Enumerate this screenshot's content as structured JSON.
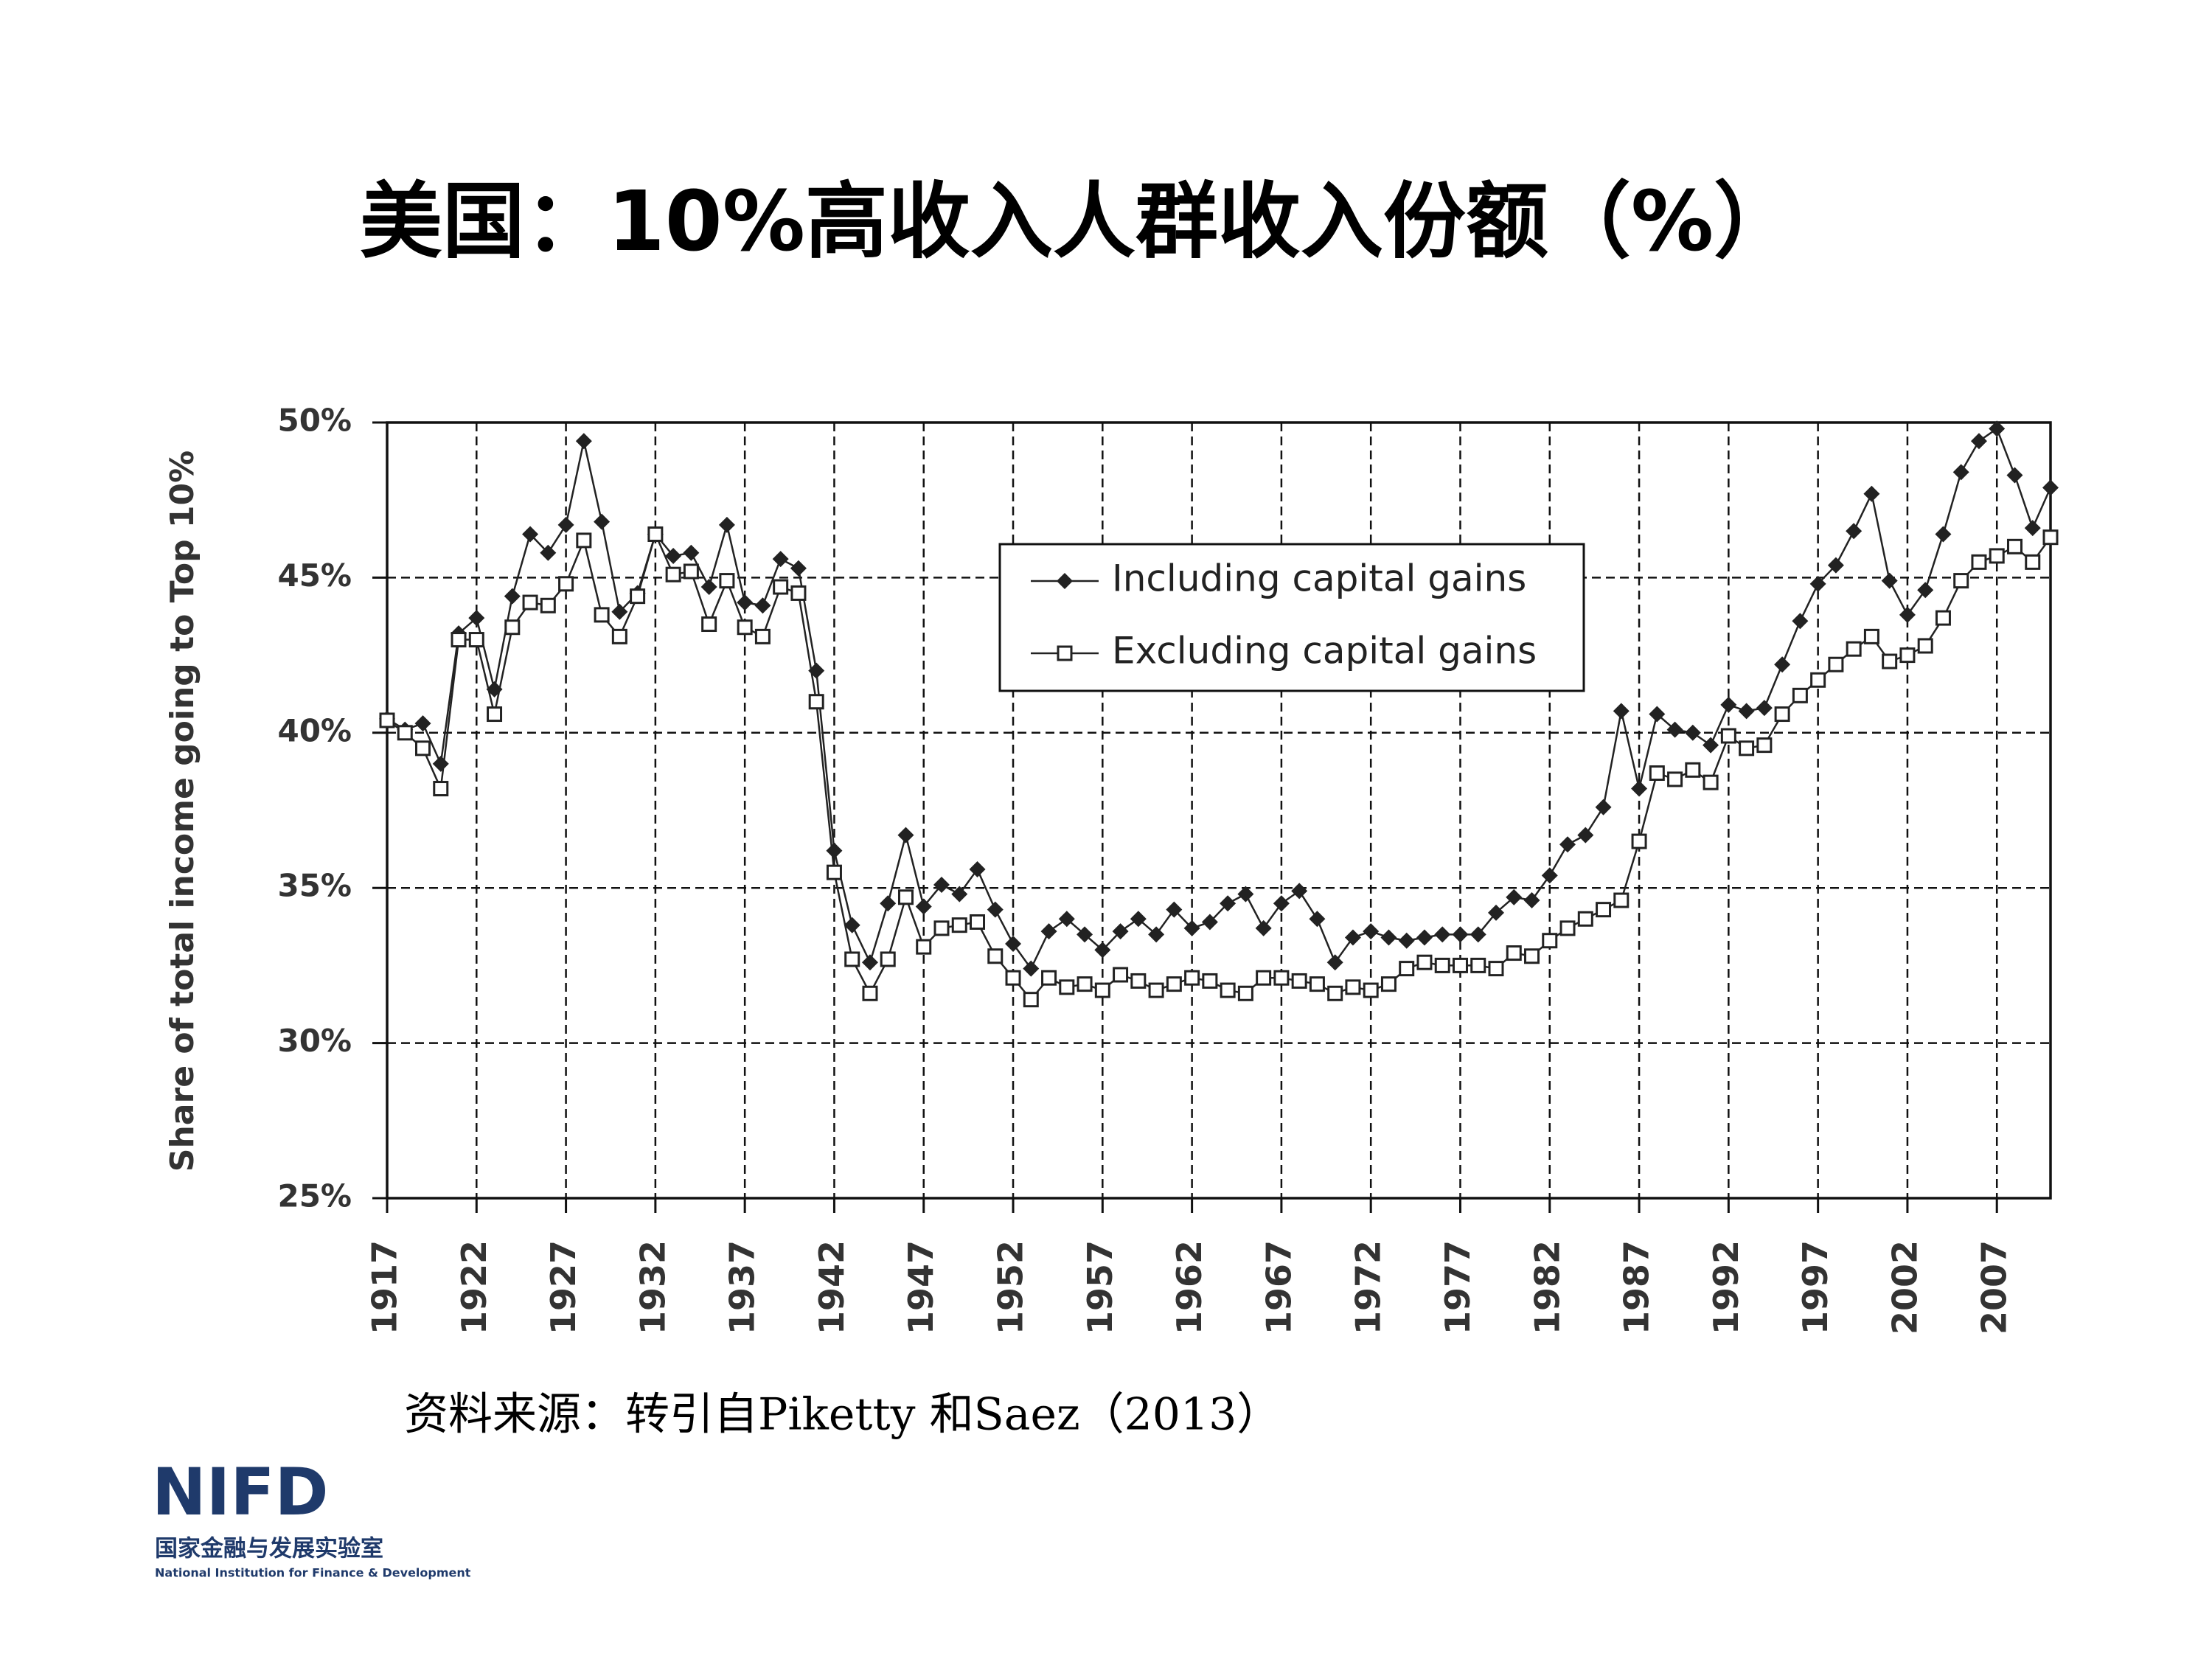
{
  "title": "美国：10%高收入人群收入份额（%）",
  "source": "资料来源：转引自Piketty 和Saez（2013）",
  "logo": {
    "name": "NIFD",
    "cn": "国家金融与发展实验室",
    "en": "National Institution for Finance & Development"
  },
  "chart_data": {
    "type": "line",
    "y_label": "Share of total income going to Top 10%",
    "x": [
      1917,
      1918,
      1919,
      1920,
      1921,
      1922,
      1923,
      1924,
      1925,
      1926,
      1927,
      1928,
      1929,
      1930,
      1931,
      1932,
      1933,
      1934,
      1935,
      1936,
      1937,
      1938,
      1939,
      1940,
      1941,
      1942,
      1943,
      1944,
      1945,
      1946,
      1947,
      1948,
      1949,
      1950,
      1951,
      1952,
      1953,
      1954,
      1955,
      1956,
      1957,
      1958,
      1959,
      1960,
      1961,
      1962,
      1963,
      1964,
      1965,
      1966,
      1967,
      1968,
      1969,
      1970,
      1971,
      1972,
      1973,
      1974,
      1975,
      1976,
      1977,
      1978,
      1979,
      1980,
      1981,
      1982,
      1983,
      1984,
      1985,
      1986,
      1987,
      1988,
      1989,
      1990,
      1991,
      1992,
      1993,
      1994,
      1995,
      1996,
      1997,
      1998,
      1999,
      2000,
      2001,
      2002,
      2003,
      2004,
      2005,
      2006,
      2007,
      2008,
      2009,
      2010
    ],
    "series": [
      {
        "name": "Including capital gains",
        "color": "#222222",
        "marker": "diamond",
        "values": [
          40.45,
          40.1,
          40.3,
          39.0,
          43.2,
          43.7,
          41.4,
          44.4,
          46.4,
          45.8,
          46.7,
          49.4,
          46.8,
          43.9,
          44.5,
          46.4,
          45.7,
          45.8,
          44.7,
          46.7,
          44.2,
          44.1,
          45.6,
          45.3,
          42.0,
          36.2,
          33.8,
          32.6,
          34.5,
          36.7,
          34.4,
          35.1,
          34.8,
          35.6,
          34.3,
          33.2,
          32.4,
          33.6,
          34.0,
          33.5,
          33.0,
          33.6,
          34.0,
          33.5,
          34.3,
          33.7,
          33.9,
          34.5,
          34.8,
          33.7,
          34.5,
          34.9,
          34.0,
          32.6,
          33.4,
          33.6,
          33.4,
          33.3,
          33.4,
          33.5,
          33.5,
          33.5,
          34.2,
          34.7,
          34.6,
          35.4,
          36.4,
          36.7,
          37.6,
          40.7,
          38.2,
          40.6,
          40.1,
          40.0,
          39.6,
          40.9,
          40.7,
          40.8,
          42.2,
          43.6,
          44.8,
          45.4,
          46.5,
          47.7,
          44.9,
          43.8,
          44.6,
          46.4,
          48.4,
          49.4,
          49.8,
          48.3,
          46.6,
          47.9
        ]
      },
      {
        "name": "Excluding capital gains",
        "color": "#222222",
        "marker": "square",
        "values": [
          40.4,
          40.0,
          39.5,
          38.2,
          43.0,
          43.0,
          40.6,
          43.4,
          44.2,
          44.1,
          44.8,
          46.2,
          43.8,
          43.1,
          44.4,
          46.4,
          45.1,
          45.2,
          43.5,
          44.9,
          43.4,
          43.1,
          44.7,
          44.5,
          41.0,
          35.5,
          32.7,
          31.6,
          32.7,
          34.7,
          33.1,
          33.7,
          33.8,
          33.9,
          32.8,
          32.1,
          31.4,
          32.1,
          31.8,
          31.9,
          31.7,
          32.2,
          32.0,
          31.7,
          31.9,
          32.1,
          32.0,
          31.7,
          31.6,
          32.1,
          32.1,
          32.0,
          31.9,
          31.6,
          31.8,
          31.7,
          31.9,
          32.4,
          32.6,
          32.5,
          32.5,
          32.5,
          32.4,
          32.9,
          32.8,
          33.3,
          33.7,
          34.0,
          34.3,
          34.6,
          36.5,
          38.7,
          38.5,
          38.8,
          38.4,
          39.9,
          39.5,
          39.6,
          40.6,
          41.2,
          41.7,
          42.2,
          42.7,
          43.1,
          42.3,
          42.5,
          42.8,
          43.7,
          44.9,
          45.5,
          45.7,
          46.0,
          45.5,
          46.3
        ]
      }
    ],
    "xlim": [
      1917,
      2010
    ],
    "xticks": [
      1917,
      1922,
      1927,
      1932,
      1937,
      1942,
      1947,
      1952,
      1957,
      1962,
      1967,
      1972,
      1977,
      1982,
      1987,
      1992,
      1997,
      2002,
      2007
    ],
    "ylim": [
      25,
      50
    ],
    "yticks": [
      {
        "value": 25,
        "label": "25%"
      },
      {
        "value": 30,
        "label": "30%"
      },
      {
        "value": 35,
        "label": "35%"
      },
      {
        "value": 40,
        "label": "40%"
      },
      {
        "value": 45,
        "label": "45%"
      },
      {
        "value": 50,
        "label": "50%"
      }
    ],
    "grid": true
  }
}
